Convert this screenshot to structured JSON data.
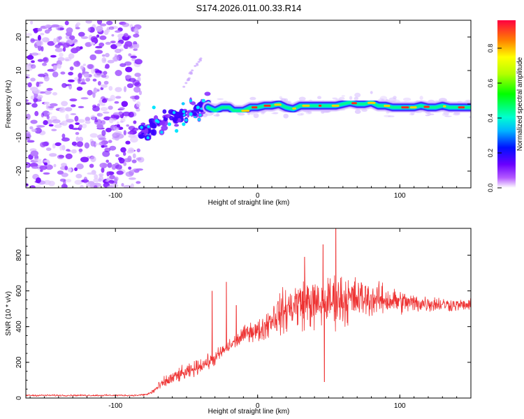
{
  "title": "S174.2026.011.00.33.R14",
  "chart_data": [
    {
      "type": "heatmap",
      "title": "S174.2026.011.00.33.R14",
      "xlabel": "Height of straight line (km)",
      "ylabel": "Frequency (Hz)",
      "xlim": [
        -163,
        150
      ],
      "ylim": [
        -25,
        25
      ],
      "xticks": [
        -100,
        0,
        100
      ],
      "xtick_labels": [
        "-100",
        "0",
        "100"
      ],
      "yticks": [
        -20,
        -10,
        0,
        10,
        20
      ],
      "ytick_labels": [
        "-20",
        "-10",
        "0",
        "10",
        "20"
      ],
      "noise_region_x": [
        -163,
        -82
      ],
      "ridge": {
        "x": [
          -35,
          -30,
          -25,
          -20,
          -17,
          -15,
          -10,
          -5,
          0,
          5,
          10,
          15,
          20,
          25,
          30,
          35,
          40,
          45,
          50,
          55,
          60,
          65,
          70,
          75,
          80,
          85,
          90,
          95,
          100,
          105,
          110,
          115,
          120,
          125,
          130,
          135,
          140,
          145,
          150
        ],
        "y": [
          -1,
          -2,
          -1,
          -1,
          -2,
          -2,
          -2,
          -1,
          -1,
          -0.5,
          -0.5,
          0,
          -1,
          -1.5,
          -0.5,
          -0.5,
          -0.5,
          -0.5,
          -0.5,
          -0.5,
          0,
          0.5,
          0,
          0,
          0.5,
          -0.5,
          -0.5,
          -1,
          -1,
          -1,
          -1,
          -0.5,
          -1,
          -1,
          -0.5,
          -1,
          -1,
          -1,
          -1
        ]
      },
      "colorbar": {
        "label": "Normalized spectral amplitude",
        "ticks": [
          0.0,
          0.2,
          0.4,
          0.6,
          0.8
        ],
        "tick_labels": [
          "0.0",
          "0.2",
          "0.4",
          "0.6",
          "0.8"
        ],
        "range": [
          0,
          0.96
        ]
      }
    },
    {
      "type": "line",
      "title": "",
      "xlabel": "Height of straight line (km)",
      "ylabel": "SNR (10 * v/v)",
      "xlim": [
        -163,
        150
      ],
      "ylim": [
        0,
        950
      ],
      "xticks": [
        -100,
        0,
        100
      ],
      "xtick_labels": [
        "-100",
        "0",
        "100"
      ],
      "yticks": [
        0,
        200,
        400,
        600,
        800
      ],
      "ytick_labels": [
        "0",
        "200",
        "400",
        "600",
        "800"
      ],
      "series": [
        {
          "name": "SNR",
          "color": "#ee3333",
          "envelope_x": [
            -163,
            -100,
            -85,
            -78,
            -75,
            -70,
            -65,
            -60,
            -55,
            -50,
            -45,
            -40,
            -35,
            -30,
            -25,
            -20,
            -15,
            -10,
            -5,
            0,
            5,
            10,
            15,
            20,
            25,
            30,
            35,
            40,
            45,
            50,
            55,
            60,
            65,
            70,
            75,
            80,
            85,
            90,
            95,
            100,
            110,
            120,
            130,
            140,
            150
          ],
          "envelope_mean": [
            15,
            15,
            15,
            20,
            30,
            60,
            90,
            110,
            130,
            140,
            160,
            185,
            200,
            220,
            260,
            290,
            320,
            350,
            380,
            370,
            400,
            450,
            470,
            490,
            520,
            530,
            540,
            520,
            520,
            540,
            550,
            555,
            550,
            555,
            560,
            555,
            550,
            550,
            545,
            540,
            530,
            530,
            525,
            520,
            520
          ],
          "envelope_spread": [
            8,
            8,
            8,
            10,
            20,
            35,
            50,
            60,
            60,
            60,
            60,
            60,
            60,
            60,
            60,
            60,
            60,
            70,
            80,
            90,
            110,
            140,
            160,
            180,
            200,
            210,
            220,
            200,
            180,
            200,
            220,
            220,
            200,
            170,
            150,
            140,
            130,
            120,
            110,
            100,
            80,
            70,
            60,
            50,
            45
          ],
          "spikes": [
            {
              "x": -32,
              "y": 600
            },
            {
              "x": -22,
              "y": 650
            },
            {
              "x": -15,
              "y": 520
            },
            {
              "x": 33,
              "y": 790
            },
            {
              "x": 46,
              "y": 860
            },
            {
              "x": 47,
              "y": 90
            },
            {
              "x": 55,
              "y": 955
            }
          ]
        }
      ]
    }
  ]
}
